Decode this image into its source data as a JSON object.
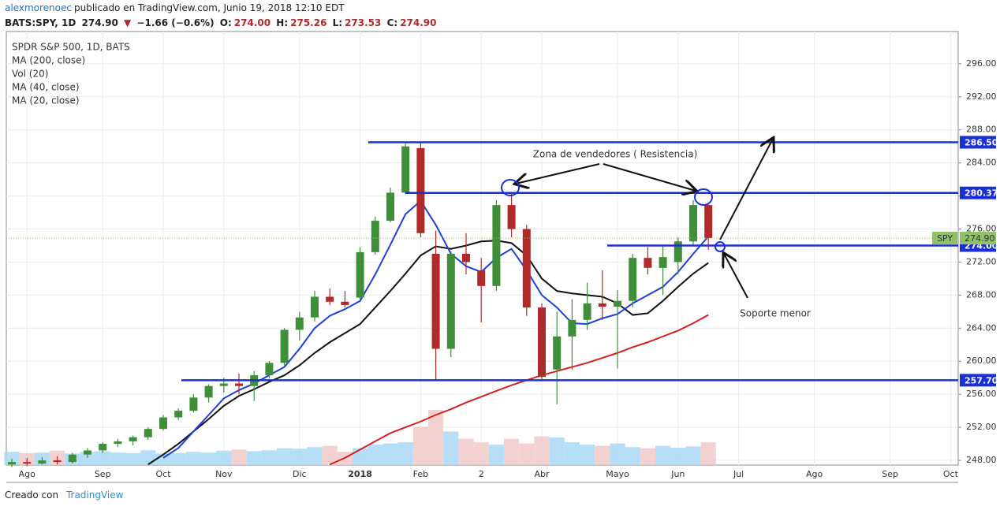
{
  "header": {
    "author": "alexmorenoec",
    "published": "publicado en TradingView.com, Junio 19, 2018 12:10 EDT",
    "symbol": "BATS:SPY, 1D",
    "last": "274.90",
    "arrow": "▼",
    "change": "−1.66 (−0.6%)",
    "ohlc": [
      {
        "label": "O:",
        "value": "274.00"
      },
      {
        "label": "H:",
        "value": "275.26"
      },
      {
        "label": "L:",
        "value": "273.53"
      },
      {
        "label": "C:",
        "value": "274.90"
      }
    ]
  },
  "footer": {
    "text": "Creado con",
    "brand": "TradingView"
  },
  "chart_data": {
    "type": "candlestick",
    "subtitle": "SPDR S&P 500, 1D, BATS",
    "volume_name": "Vol (20)",
    "annotations": [
      "Zona de vendedores ( Resistencia)",
      "Soporte menor"
    ],
    "grid": true,
    "up_color": "#3f8f3a",
    "down_color": "#b02a2a",
    "volume_up_color": "#a9d8f5",
    "volume_down_color": "#f2c9c9",
    "categories": [
      null,
      "Ago",
      null,
      null,
      null,
      null,
      "Sep",
      null,
      null,
      null,
      "Oct",
      null,
      null,
      null,
      "Nov",
      null,
      null,
      null,
      null,
      "Dic",
      null,
      null,
      null,
      "2018",
      null,
      null,
      null,
      "Feb",
      null,
      null,
      null,
      "2",
      null,
      null,
      null,
      "Abr",
      null,
      null,
      null,
      null,
      "Mayo",
      null,
      null,
      null,
      "Jun",
      null,
      null,
      null,
      "Jul",
      null,
      null,
      null,
      null,
      "Ago",
      null,
      null,
      null,
      null,
      "Sep",
      null,
      null,
      null,
      "Oct"
    ],
    "open": [
      247.5,
      247.8,
      247.6,
      248.0,
      247.8,
      248.7,
      249.2,
      250.0,
      250.3,
      250.8,
      251.8,
      253.2,
      254.0,
      255.6,
      257.0,
      257.3,
      257.0,
      258.3,
      259.8,
      263.8,
      265.3,
      267.8,
      267.2,
      267.7,
      273.2,
      277.0,
      280.4,
      285.8,
      273.0,
      261.5,
      273.0,
      271.0,
      269.1,
      278.9,
      276.0,
      266.5,
      259.0,
      263.0,
      265.0,
      267.0,
      266.6,
      267.3,
      272.5,
      271.3,
      272.0,
      274.5,
      278.9,
      null,
      null,
      null,
      null,
      null,
      null,
      null,
      null,
      null,
      null,
      null,
      null,
      null,
      null,
      null,
      null
    ],
    "high": [
      248.2,
      248.3,
      248.4,
      248.5,
      248.9,
      249.5,
      250.2,
      250.6,
      251.0,
      252.0,
      253.5,
      254.3,
      256.0,
      257.2,
      258.0,
      258.5,
      258.8,
      260.0,
      264.0,
      266.0,
      268.5,
      268.8,
      268.5,
      273.8,
      277.5,
      281.0,
      286.6,
      286.6,
      275.8,
      273.3,
      275.5,
      272.5,
      279.5,
      280.4,
      276.5,
      267.0,
      266.0,
      267.5,
      269.5,
      271.0,
      268.6,
      273.0,
      273.8,
      274.0,
      275.0,
      279.5,
      279.2,
      null,
      null,
      null,
      null,
      null,
      null,
      null,
      null,
      null,
      null,
      null,
      null,
      null,
      null,
      null,
      null
    ],
    "low": [
      247.2,
      247.3,
      247.5,
      247.5,
      247.6,
      248.3,
      248.9,
      249.6,
      249.8,
      250.5,
      251.6,
      252.9,
      253.8,
      255.0,
      256.2,
      256.0,
      255.2,
      257.9,
      259.5,
      262.5,
      264.8,
      266.8,
      266.5,
      267.5,
      272.9,
      276.8,
      280.2,
      275.0,
      257.7,
      260.5,
      270.5,
      264.7,
      268.5,
      275.0,
      265.5,
      257.8,
      254.8,
      259.0,
      263.8,
      265.0,
      259.1,
      266.5,
      270.5,
      268.0,
      270.5,
      274.0,
      273.5,
      null,
      null,
      null,
      null,
      null,
      null,
      null,
      null,
      null,
      null,
      null,
      null,
      null,
      null,
      null,
      null
    ],
    "close": [
      247.8,
      247.6,
      248.0,
      247.8,
      248.7,
      249.2,
      250.0,
      250.3,
      250.8,
      251.8,
      253.2,
      254.0,
      255.6,
      257.0,
      257.3,
      257.0,
      258.3,
      259.8,
      263.8,
      265.3,
      267.8,
      267.2,
      266.8,
      273.2,
      277.0,
      280.4,
      286.0,
      275.5,
      261.5,
      273.0,
      272.0,
      269.1,
      278.9,
      276.0,
      266.5,
      258.1,
      263.0,
      265.0,
      267.0,
      266.6,
      267.3,
      272.5,
      271.3,
      272.6,
      274.5,
      278.9,
      274.9,
      null,
      null,
      null,
      null,
      null,
      null,
      null,
      null,
      null,
      null,
      null,
      null,
      null,
      null,
      null,
      null
    ],
    "volume": [
      55,
      50,
      52,
      60,
      48,
      55,
      58,
      52,
      50,
      62,
      48,
      50,
      55,
      52,
      60,
      65,
      58,
      62,
      70,
      68,
      75,
      80,
      55,
      70,
      85,
      90,
      95,
      160,
      230,
      140,
      110,
      95,
      85,
      110,
      90,
      120,
      115,
      95,
      85,
      80,
      90,
      75,
      70,
      80,
      72,
      78,
      95,
      null,
      null,
      null,
      null,
      null,
      null,
      null,
      null,
      null,
      null,
      null,
      null,
      null,
      null,
      null,
      null
    ],
    "series": [
      {
        "name": "MA (200, close)",
        "color": "#d42020",
        "values": [
          null,
          null,
          null,
          null,
          null,
          null,
          null,
          null,
          null,
          null,
          null,
          null,
          null,
          null,
          null,
          null,
          null,
          null,
          null,
          null,
          null,
          247.5,
          248.3,
          249.3,
          250.3,
          251.3,
          252.0,
          252.7,
          253.5,
          254.2,
          255.0,
          255.7,
          256.4,
          257.1,
          257.7,
          258.3,
          258.8,
          259.3,
          259.8,
          260.4,
          261.0,
          261.7,
          262.3,
          263.0,
          263.7,
          264.6,
          265.6,
          null,
          null,
          null,
          null,
          null,
          null,
          null,
          null,
          null,
          null,
          null,
          null,
          null,
          null,
          null,
          null
        ]
      },
      {
        "name": "MA (40, close)",
        "color": "#111111",
        "values": [
          null,
          null,
          null,
          null,
          null,
          null,
          null,
          null,
          null,
          247.5,
          248.7,
          250.0,
          251.5,
          253.0,
          254.6,
          255.8,
          256.6,
          257.5,
          258.3,
          259.5,
          261.0,
          262.3,
          263.4,
          264.5,
          266.5,
          268.5,
          270.6,
          272.8,
          273.9,
          273.6,
          274.0,
          274.5,
          274.6,
          274.3,
          272.8,
          270.0,
          268.5,
          268.2,
          268.0,
          267.8,
          267.0,
          265.6,
          265.8,
          267.3,
          269.0,
          270.6,
          271.9,
          null,
          null,
          null,
          null,
          null,
          null,
          null,
          null,
          null,
          null,
          null,
          null,
          null,
          null,
          null,
          null
        ]
      },
      {
        "name": "MA (20, close)",
        "color": "#1f3fd6",
        "values": [
          null,
          null,
          null,
          null,
          null,
          null,
          null,
          null,
          null,
          null,
          248.3,
          249.5,
          251.5,
          253.5,
          255.5,
          256.5,
          257.3,
          258.3,
          259.3,
          261.5,
          264.0,
          265.5,
          266.3,
          267.3,
          270.5,
          274.1,
          277.8,
          279.4,
          276.5,
          273.0,
          271.5,
          270.8,
          272.5,
          273.6,
          271.0,
          268.0,
          266.5,
          264.6,
          264.5,
          265.2,
          265.7,
          267.0,
          268.0,
          269.0,
          270.8,
          273.0,
          275.1,
          null,
          null,
          null,
          null,
          null,
          null,
          null,
          null,
          null,
          null,
          null,
          null,
          null,
          null,
          null,
          null
        ]
      }
    ],
    "price_lines": [
      {
        "value": 286.5,
        "label": "286.50"
      },
      {
        "value": 280.37,
        "label": "280.37"
      },
      {
        "value": 274,
        "label": "274.00"
      },
      {
        "value": 257.7,
        "label": "257.70"
      }
    ],
    "price_line_color": "#1b2fd6",
    "last_price": {
      "value": 274.9,
      "label": "274.90",
      "tag": "SPY",
      "color": "#8fc06a"
    },
    "ylim": [
      247.43,
      299.9
    ],
    "yticks": [
      {
        "value": 248,
        "label": "248.00"
      },
      {
        "value": 252,
        "label": "252.00"
      },
      {
        "value": 256,
        "label": "256.00"
      },
      {
        "value": 260,
        "label": "260.00"
      },
      {
        "value": 264,
        "label": "264.00"
      },
      {
        "value": 268,
        "label": "268.00"
      },
      {
        "value": 272,
        "label": "272.00"
      },
      {
        "value": 276,
        "label": "276.00"
      },
      {
        "value": 280,
        "label": "280.00"
      },
      {
        "value": 284,
        "label": "284.00"
      },
      {
        "value": 288,
        "label": "288.00"
      },
      {
        "value": 292,
        "label": "292.00"
      },
      {
        "value": 296,
        "label": "296.00"
      }
    ]
  }
}
